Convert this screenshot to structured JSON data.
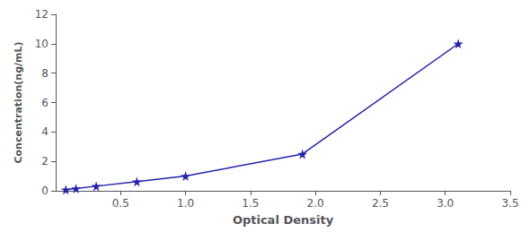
{
  "chart_data": {
    "type": "line",
    "x": [
      0.078,
      0.156,
      0.312,
      0.625,
      1.0,
      1.9,
      3.1
    ],
    "series": [
      {
        "name": "",
        "color": "#2222aa",
        "marker": "star",
        "values": [
          0.078,
          0.156,
          0.312,
          0.625,
          1.0,
          2.5,
          10.0
        ]
      }
    ],
    "xlabel": "Optical Density",
    "ylabel": "Concentration(ng/mL)",
    "xlim": [
      0,
      3.5
    ],
    "ylim": [
      0,
      12
    ],
    "xticks": [
      0.5,
      {
        "value": 1,
        "label": "1.0"
      },
      1.5,
      {
        "value": 2,
        "label": "2.0"
      },
      2.5,
      {
        "value": 3,
        "label": "3.0"
      },
      3.5
    ],
    "yticks": [
      0,
      2,
      4,
      6,
      8,
      10,
      12
    ],
    "grid": false
  }
}
